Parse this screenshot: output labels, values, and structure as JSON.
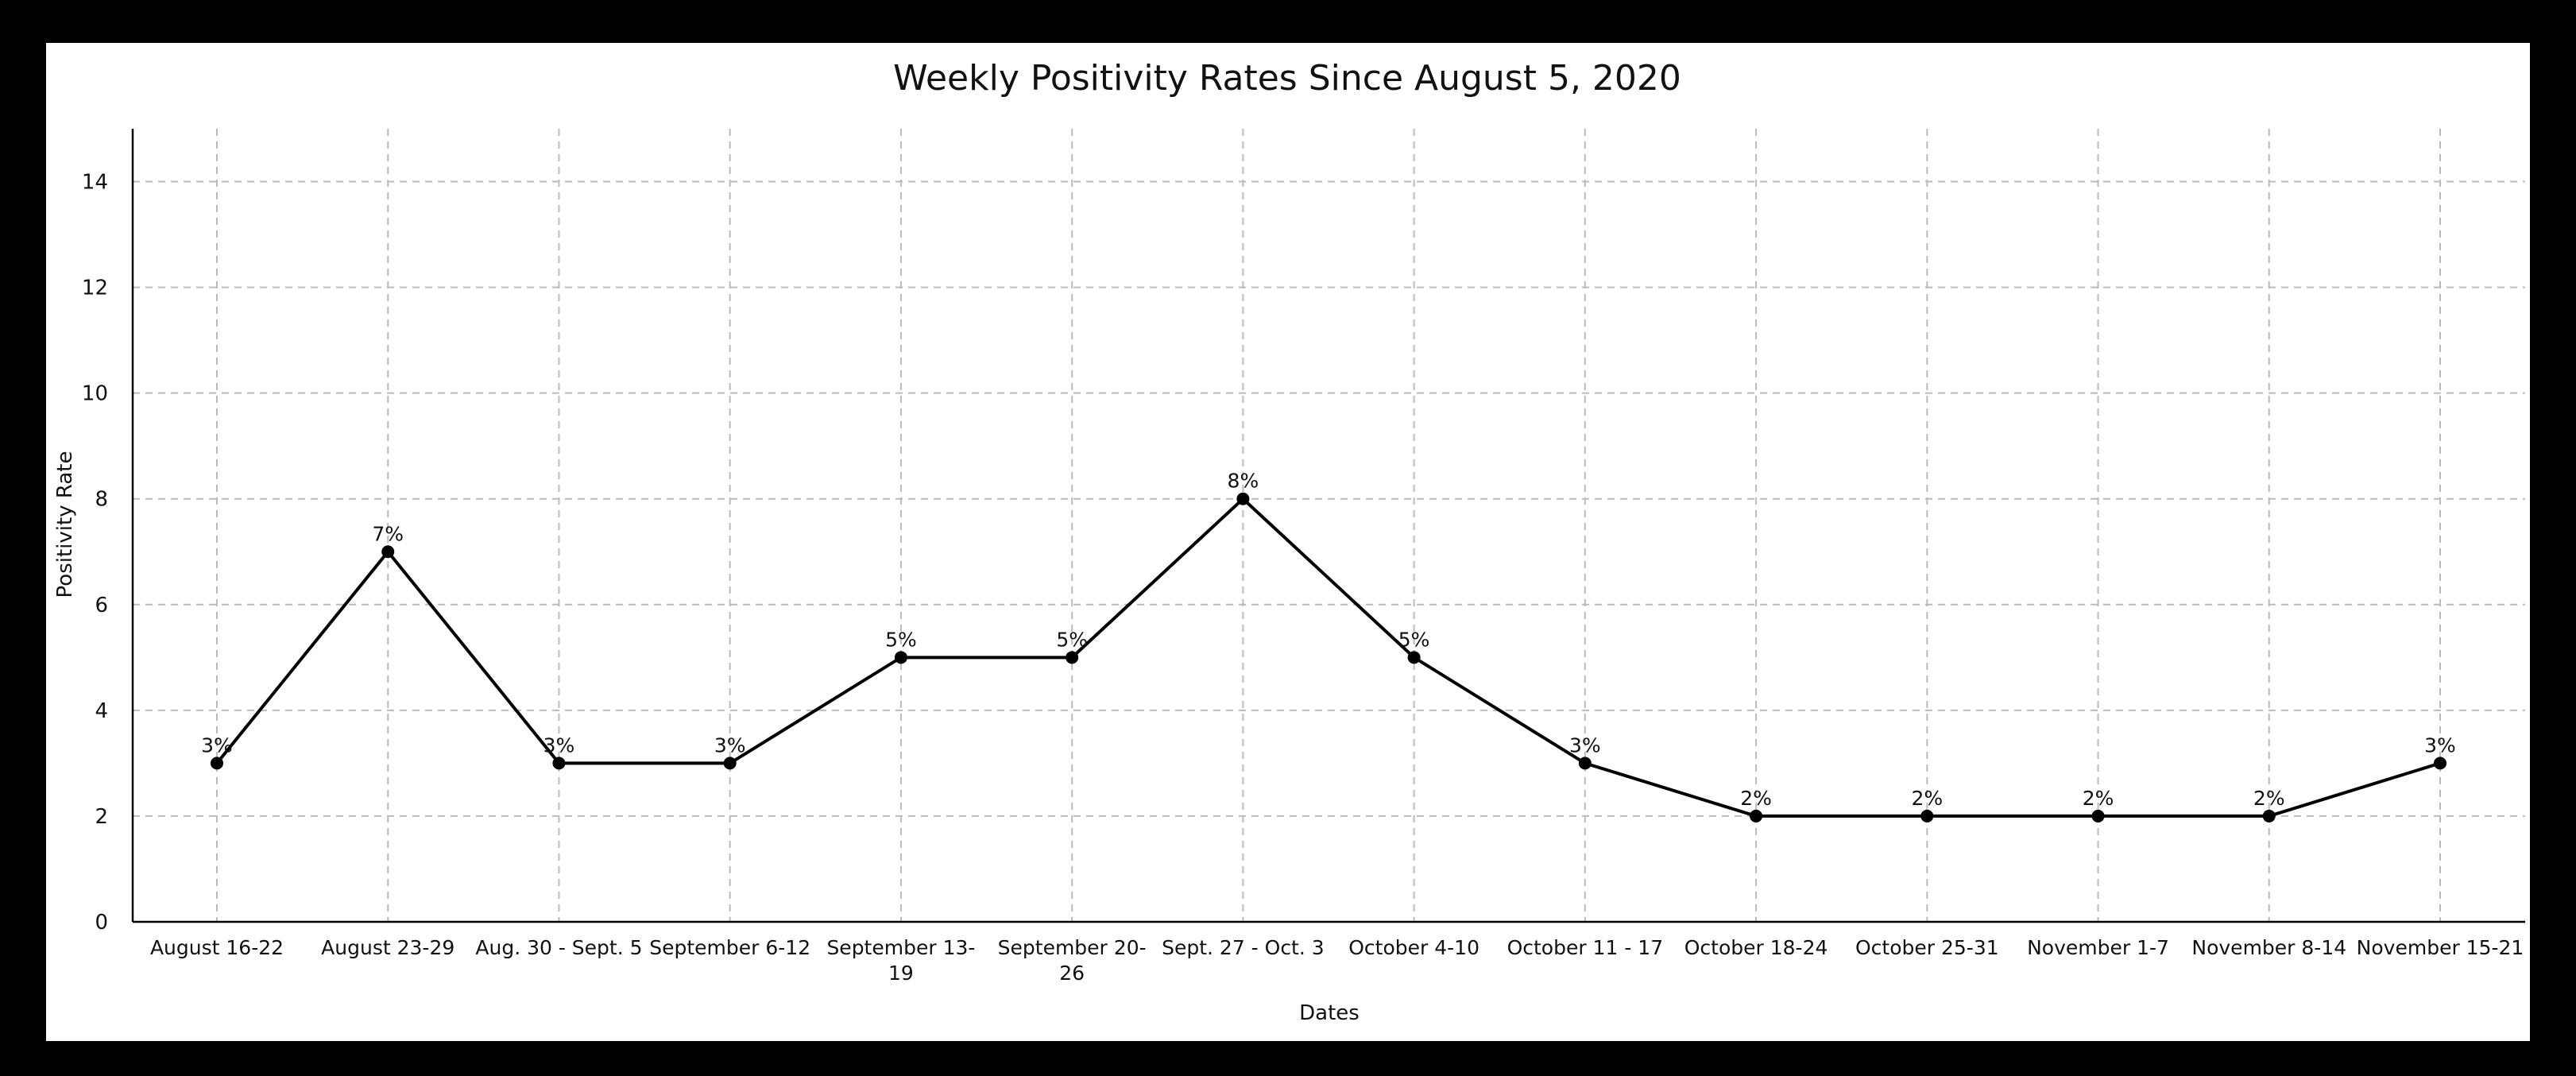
{
  "chart_data": {
    "type": "line",
    "title": "Weekly Positivity Rates Since August 5, 2020",
    "xlabel": "Dates",
    "ylabel": "Positivity Rate",
    "categories": [
      [
        "August 16-22"
      ],
      [
        "August 23-29"
      ],
      [
        "Aug. 30 - Sept. 5"
      ],
      [
        "September 6-12"
      ],
      [
        "September 13-",
        "19"
      ],
      [
        "September 20-",
        "26"
      ],
      [
        "Sept. 27 - Oct. 3"
      ],
      [
        "October 4-10"
      ],
      [
        "October 11 - 17"
      ],
      [
        "October 18-24"
      ],
      [
        "October 25-31"
      ],
      [
        "November 1-7"
      ],
      [
        "November 8-14"
      ],
      [
        "November 15-21"
      ]
    ],
    "series": [
      {
        "values": [
          3,
          7,
          3,
          3,
          5,
          5,
          8,
          5,
          3,
          2,
          2,
          2,
          2,
          3
        ]
      }
    ],
    "data_labels": [
      "3%",
      "7%",
      "3%",
      "3%",
      "5%",
      "5%",
      "8%",
      "5%",
      "3%",
      "2%",
      "2%",
      "2%",
      "2%",
      "3%"
    ],
    "ylim": [
      0,
      15
    ],
    "yticks": [
      0,
      2,
      4,
      6,
      8,
      10,
      12,
      14
    ],
    "grid": true,
    "grid_style": "dashed",
    "line_color": "#000000",
    "marker_color": "#000000",
    "grid_color": "#bbbbbb",
    "frame_color": "#000000"
  }
}
